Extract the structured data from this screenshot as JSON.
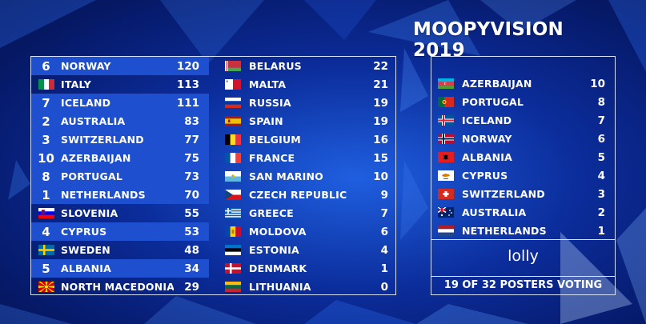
{
  "title": "MOOPYVISION 2019",
  "colors": {
    "highlight": "#1e4fcf",
    "border": "#d7e2ff",
    "background": "#0b2c9a"
  },
  "scoreboard": {
    "left": [
      {
        "rank": "6",
        "flag": "flag-norway-icon",
        "country": "NORWAY",
        "score": "120",
        "highlight": true
      },
      {
        "rank": "",
        "flag": "flag-italy-icon",
        "country": "ITALY",
        "score": "113",
        "highlight": false
      },
      {
        "rank": "7",
        "flag": "flag-iceland-icon",
        "country": "ICELAND",
        "score": "111",
        "highlight": true
      },
      {
        "rank": "2",
        "flag": "flag-australia-icon",
        "country": "AUSTRALIA",
        "score": "83",
        "highlight": true
      },
      {
        "rank": "3",
        "flag": "flag-switzerland-icon",
        "country": "SWITZERLAND",
        "score": "77",
        "highlight": true
      },
      {
        "rank": "10",
        "flag": "flag-azerbaijan-icon",
        "country": "AZERBAIJAN",
        "score": "75",
        "highlight": true
      },
      {
        "rank": "8",
        "flag": "flag-portugal-icon",
        "country": "PORTUGAL",
        "score": "73",
        "highlight": true
      },
      {
        "rank": "1",
        "flag": "flag-netherlands-icon",
        "country": "NETHERLANDS",
        "score": "70",
        "highlight": true
      },
      {
        "rank": "",
        "flag": "flag-slovenia-icon",
        "country": "SLOVENIA",
        "score": "55",
        "highlight": false
      },
      {
        "rank": "4",
        "flag": "flag-cyprus-icon",
        "country": "CYPRUS",
        "score": "53",
        "highlight": true
      },
      {
        "rank": "",
        "flag": "flag-sweden-icon",
        "country": "SWEDEN",
        "score": "48",
        "highlight": false
      },
      {
        "rank": "5",
        "flag": "flag-albania-icon",
        "country": "ALBANIA",
        "score": "34",
        "highlight": true
      },
      {
        "rank": "",
        "flag": "flag-north-macedonia-icon",
        "country": "NORTH MACEDONIA",
        "score": "29",
        "highlight": false
      }
    ],
    "right": [
      {
        "flag": "flag-belarus-icon",
        "country": "BELARUS",
        "score": "22"
      },
      {
        "flag": "flag-malta-icon",
        "country": "MALTA",
        "score": "21"
      },
      {
        "flag": "flag-russia-icon",
        "country": "RUSSIA",
        "score": "19"
      },
      {
        "flag": "flag-spain-icon",
        "country": "SPAIN",
        "score": "19"
      },
      {
        "flag": "flag-belgium-icon",
        "country": "BELGIUM",
        "score": "16"
      },
      {
        "flag": "flag-france-icon",
        "country": "FRANCE",
        "score": "15"
      },
      {
        "flag": "flag-san-marino-icon",
        "country": "SAN MARINO",
        "score": "10"
      },
      {
        "flag": "flag-czech-republic-icon",
        "country": "CZECH REPUBLIC",
        "score": "9"
      },
      {
        "flag": "flag-greece-icon",
        "country": "GREECE",
        "score": "7"
      },
      {
        "flag": "flag-moldova-icon",
        "country": "MOLDOVA",
        "score": "6"
      },
      {
        "flag": "flag-estonia-icon",
        "country": "ESTONIA",
        "score": "4"
      },
      {
        "flag": "flag-denmark-icon",
        "country": "DENMARK",
        "score": "1"
      },
      {
        "flag": "flag-lithuania-icon",
        "country": "LITHUANIA",
        "score": "0"
      }
    ]
  },
  "votes": {
    "items": [
      {
        "flag": "flag-azerbaijan-icon",
        "country": "AZERBAIJAN",
        "points": "10"
      },
      {
        "flag": "flag-portugal-icon",
        "country": "PORTUGAL",
        "points": "8"
      },
      {
        "flag": "flag-iceland-icon",
        "country": "ICELAND",
        "points": "7"
      },
      {
        "flag": "flag-norway-icon",
        "country": "NORWAY",
        "points": "6"
      },
      {
        "flag": "flag-albania-icon",
        "country": "ALBANIA",
        "points": "5"
      },
      {
        "flag": "flag-cyprus-icon",
        "country": "CYPRUS",
        "points": "4"
      },
      {
        "flag": "flag-switzerland-icon",
        "country": "SWITZERLAND",
        "points": "3"
      },
      {
        "flag": "flag-australia-icon",
        "country": "AUSTRALIA",
        "points": "2"
      },
      {
        "flag": "flag-netherlands-icon",
        "country": "NETHERLANDS",
        "points": "1"
      }
    ],
    "poster": "lolly",
    "status": "19 OF 32 POSTERS VOTING"
  }
}
